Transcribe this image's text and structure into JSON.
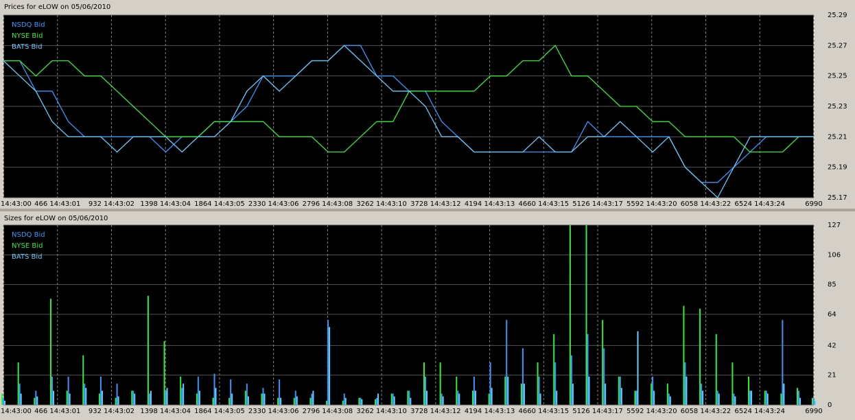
{
  "chart_data": [
    {
      "type": "line",
      "title": "Prices for  eLOW  on  05/06/2010",
      "legend": "upper left",
      "grid": true,
      "x": [
        0,
        140,
        280,
        420,
        560,
        700,
        840,
        980,
        1120,
        1260,
        1400,
        1540,
        1680,
        1820,
        1960,
        2100,
        2240,
        2380,
        2520,
        2660,
        2800,
        2940,
        3080,
        3220,
        3360,
        3500,
        3640,
        3780,
        3920,
        4060,
        4200,
        4340,
        4480,
        4620,
        4760,
        4900,
        5040,
        5180,
        5320,
        5460,
        5600,
        5740,
        5880,
        6020,
        6160,
        6300,
        6440,
        6580,
        6720,
        6860,
        6990
      ],
      "xlim": [
        0,
        6990
      ],
      "xticks": [
        {
          "value": 0,
          "label": "14:43:00"
        },
        {
          "value": 466,
          "label": "466 14:43:01"
        },
        {
          "value": 932,
          "label": "932 14:43:02"
        },
        {
          "value": 1398,
          "label": "1398 14:43:04"
        },
        {
          "value": 1864,
          "label": "1864 14:43:05"
        },
        {
          "value": 2330,
          "label": "2330 14:43:06"
        },
        {
          "value": 2796,
          "label": "2796 14:43:08"
        },
        {
          "value": 3262,
          "label": "3262 14:43:10"
        },
        {
          "value": 3728,
          "label": "3728 14:43:12"
        },
        {
          "value": 4194,
          "label": "4194 14:43:13"
        },
        {
          "value": 4660,
          "label": "4660 14:43:15"
        },
        {
          "value": 5126,
          "label": "5126 14:43:17"
        },
        {
          "value": 5592,
          "label": "5592 14:43:20"
        },
        {
          "value": 6058,
          "label": "6058 14:43:22"
        },
        {
          "value": 6524,
          "label": "6524 14:43:24"
        },
        6990
      ],
      "ylim": [
        25.17,
        25.29
      ],
      "yticks": [
        25.17,
        25.19,
        25.21,
        25.23,
        25.25,
        25.27,
        25.29
      ],
      "series": [
        {
          "name": "NSDQ Bid",
          "color": "#3399ff",
          "values": [
            25.26,
            25.26,
            25.24,
            25.24,
            25.22,
            25.21,
            25.21,
            25.21,
            25.21,
            25.21,
            25.2,
            25.21,
            25.21,
            25.22,
            25.22,
            25.23,
            25.25,
            25.25,
            25.25,
            25.26,
            25.26,
            25.27,
            25.27,
            25.25,
            25.25,
            25.24,
            25.24,
            25.22,
            25.21,
            25.2,
            25.2,
            25.2,
            25.2,
            25.2,
            25.2,
            25.2,
            25.22,
            25.21,
            25.21,
            25.21,
            25.21,
            25.21,
            25.19,
            25.18,
            25.18,
            25.19,
            25.2,
            25.21,
            25.21,
            25.21,
            25.21
          ]
        },
        {
          "name": "NYSE Bid",
          "color": "#33ee33",
          "values": [
            25.26,
            25.26,
            25.25,
            25.26,
            25.26,
            25.25,
            25.25,
            25.24,
            25.23,
            25.22,
            25.21,
            25.21,
            25.21,
            25.22,
            25.22,
            25.22,
            25.22,
            25.21,
            25.21,
            25.21,
            25.2,
            25.2,
            25.21,
            25.22,
            25.22,
            25.24,
            25.24,
            25.24,
            25.24,
            25.24,
            25.25,
            25.25,
            25.26,
            25.26,
            25.27,
            25.25,
            25.25,
            25.24,
            25.23,
            25.23,
            25.22,
            25.22,
            25.21,
            25.21,
            25.21,
            25.21,
            25.2,
            25.2,
            25.2,
            25.21,
            25.21
          ]
        },
        {
          "name": "BATS Bid",
          "color": "#66ccff",
          "values": [
            25.26,
            25.25,
            25.24,
            25.22,
            25.21,
            25.21,
            25.21,
            25.2,
            25.21,
            25.21,
            25.21,
            25.2,
            25.21,
            25.21,
            25.22,
            25.24,
            25.25,
            25.24,
            25.25,
            25.26,
            25.26,
            25.27,
            25.26,
            25.25,
            25.24,
            25.24,
            25.23,
            25.21,
            25.21,
            25.2,
            25.2,
            25.2,
            25.2,
            25.21,
            25.2,
            25.2,
            25.21,
            25.21,
            25.22,
            25.21,
            25.2,
            25.21,
            25.19,
            25.18,
            25.17,
            25.19,
            25.21,
            25.21,
            25.21,
            25.21,
            25.21
          ]
        }
      ]
    },
    {
      "type": "bar",
      "title": "Sizes for  eLOW  on  05/06/2010",
      "legend": "upper left",
      "grid": true,
      "x": [
        0,
        140,
        280,
        420,
        560,
        700,
        840,
        980,
        1120,
        1260,
        1400,
        1540,
        1680,
        1820,
        1960,
        2100,
        2240,
        2380,
        2520,
        2660,
        2800,
        2940,
        3080,
        3220,
        3360,
        3500,
        3640,
        3780,
        3920,
        4060,
        4200,
        4340,
        4480,
        4620,
        4760,
        4900,
        5040,
        5180,
        5320,
        5460,
        5600,
        5740,
        5880,
        6020,
        6160,
        6300,
        6440,
        6580,
        6720,
        6860,
        6990
      ],
      "xlim": [
        0,
        6990
      ],
      "xticks": [
        {
          "value": 0,
          "label": "14:43:00"
        },
        {
          "value": 466,
          "label": "466 14:43:01"
        },
        {
          "value": 932,
          "label": "932 14:43:02"
        },
        {
          "value": 1398,
          "label": "1398 14:43:04"
        },
        {
          "value": 1864,
          "label": "1864 14:43:05"
        },
        {
          "value": 2330,
          "label": "2330 14:43:06"
        },
        {
          "value": 2796,
          "label": "2796 14:43:08"
        },
        {
          "value": 3262,
          "label": "3262 14:43:10"
        },
        {
          "value": 3728,
          "label": "3728 14:43:12"
        },
        {
          "value": 4194,
          "label": "4194 14:43:13"
        },
        {
          "value": 4660,
          "label": "4660 14:43:15"
        },
        {
          "value": 5126,
          "label": "5126 14:43:17"
        },
        {
          "value": 5592,
          "label": "5592 14:43:20"
        },
        {
          "value": 6058,
          "label": "6058 14:43:22"
        },
        {
          "value": 6524,
          "label": "6524 14:43:24"
        },
        6990
      ],
      "ylim": [
        0,
        127
      ],
      "yticks": [
        0,
        21,
        42,
        64,
        85,
        106,
        127
      ],
      "series": [
        {
          "name": "NSDQ Bid",
          "color": "#3399ff",
          "values": [
            5,
            15,
            10,
            20,
            20,
            15,
            20,
            15,
            10,
            8,
            10,
            12,
            20,
            22,
            18,
            15,
            12,
            18,
            10,
            8,
            60,
            8,
            5,
            5,
            8,
            10,
            20,
            8,
            10,
            20,
            30,
            60,
            40,
            20,
            30,
            35,
            50,
            40,
            20,
            10,
            20,
            8,
            30,
            15,
            10,
            8,
            10,
            10,
            60,
            10,
            5
          ]
        },
        {
          "name": "NYSE Bid",
          "color": "#33ee33",
          "values": [
            8,
            30,
            5,
            75,
            10,
            35,
            8,
            5,
            10,
            77,
            45,
            20,
            8,
            5,
            5,
            10,
            8,
            5,
            5,
            5,
            3,
            3,
            5,
            4,
            8,
            10,
            30,
            30,
            20,
            10,
            8,
            20,
            15,
            30,
            50,
            127,
            127,
            60,
            20,
            10,
            15,
            15,
            70,
            68,
            50,
            30,
            20,
            10,
            8,
            12,
            5
          ]
        },
        {
          "name": "BATS Bid",
          "color": "#66ccff",
          "values": [
            3,
            8,
            6,
            10,
            8,
            12,
            10,
            6,
            8,
            10,
            12,
            15,
            10,
            12,
            8,
            6,
            8,
            5,
            6,
            10,
            55,
            5,
            4,
            8,
            6,
            5,
            10,
            6,
            8,
            10,
            12,
            20,
            15,
            8,
            10,
            15,
            20,
            15,
            12,
            52,
            10,
            6,
            20,
            10,
            8,
            6,
            10,
            8,
            15,
            5,
            3
          ]
        }
      ]
    }
  ]
}
